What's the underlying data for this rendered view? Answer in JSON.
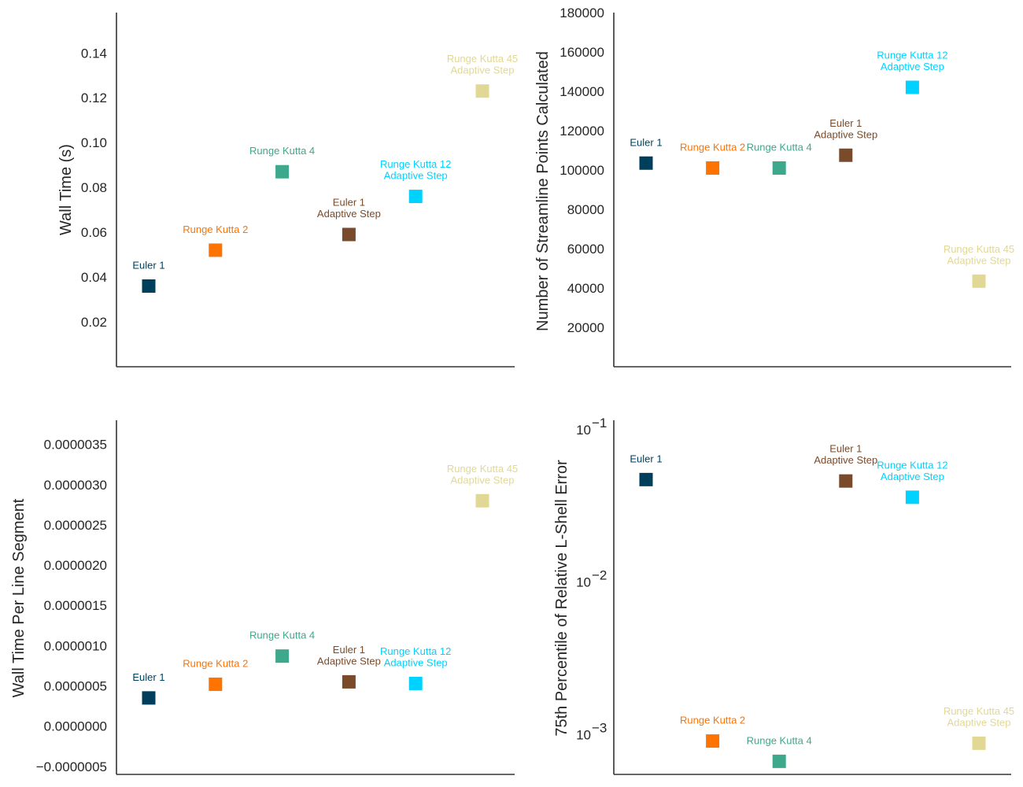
{
  "chart_data": [
    {
      "type": "scatter",
      "ylabel": "Wall Time (s)",
      "ylim": [
        0,
        0.158
      ],
      "yscale": "linear",
      "yticks": [
        0.02,
        0.04,
        0.06,
        0.08,
        0.1,
        0.12,
        0.14
      ],
      "ytick_labels": [
        "0.02",
        "0.04",
        "0.06",
        "0.08",
        "0.10",
        "0.12",
        "0.14"
      ],
      "points": [
        {
          "label": "Euler 1",
          "value": 0.036,
          "color": "#003f5c"
        },
        {
          "label": "Runge Kutta 2",
          "value": 0.052,
          "color": "#ff7300"
        },
        {
          "label": "Runge Kutta 4",
          "value": 0.087,
          "color": "#3ea88c"
        },
        {
          "label": "Euler 1\nAdaptive Step",
          "value": 0.059,
          "color": "#7a4b2a"
        },
        {
          "label": "Runge Kutta 12\nAdaptive Step",
          "value": 0.076,
          "color": "#00d2ff"
        },
        {
          "label": "Runge Kutta 45\nAdaptive Step",
          "value": 0.123,
          "color": "#e1d896"
        }
      ],
      "grid": false
    },
    {
      "type": "scatter",
      "ylabel": "Number of Streamline Points Calculated",
      "ylim": [
        0,
        180000
      ],
      "yscale": "linear",
      "yticks": [
        20000,
        40000,
        60000,
        80000,
        100000,
        120000,
        140000,
        160000,
        180000
      ],
      "ytick_labels": [
        "20000",
        "40000",
        "60000",
        "80000",
        "100000",
        "120000",
        "140000",
        "160000",
        "180000"
      ],
      "points": [
        {
          "label": "Euler 1",
          "value": 103500,
          "color": "#003f5c"
        },
        {
          "label": "Runge Kutta 2",
          "value": 101000,
          "color": "#ff7300"
        },
        {
          "label": "Runge Kutta 4",
          "value": 101000,
          "color": "#3ea88c"
        },
        {
          "label": "Euler 1\nAdaptive Step",
          "value": 107500,
          "color": "#7a4b2a"
        },
        {
          "label": "Runge Kutta 12\nAdaptive Step",
          "value": 142000,
          "color": "#00d2ff"
        },
        {
          "label": "Runge Kutta 45\nAdaptive Step",
          "value": 43500,
          "color": "#e1d896"
        }
      ],
      "grid": false
    },
    {
      "type": "scatter",
      "ylabel": "Wall Time Per Line Segment",
      "ylim": [
        -6e-07,
        3.8e-06
      ],
      "yscale": "linear",
      "yticks": [
        -5e-07,
        0.0,
        5e-07,
        1e-06,
        1.5e-06,
        2e-06,
        2.5e-06,
        3e-06,
        3.5e-06
      ],
      "ytick_labels": [
        "−0.0000005",
        "0.0000000",
        "0.0000005",
        "0.0000010",
        "0.0000015",
        "0.0000020",
        "0.0000025",
        "0.0000030",
        "0.0000035"
      ],
      "points": [
        {
          "label": "Euler 1",
          "value": 3.5e-07,
          "color": "#003f5c"
        },
        {
          "label": "Runge Kutta 2",
          "value": 5.2e-07,
          "color": "#ff7300"
        },
        {
          "label": "Runge Kutta 4",
          "value": 8.7e-07,
          "color": "#3ea88c"
        },
        {
          "label": "Euler 1\nAdaptive Step",
          "value": 5.5e-07,
          "color": "#7a4b2a"
        },
        {
          "label": "Runge Kutta 12\nAdaptive Step",
          "value": 5.3e-07,
          "color": "#00d2ff"
        },
        {
          "label": "Runge Kutta 45\nAdaptive Step",
          "value": 2.8e-06,
          "color": "#e1d896"
        }
      ],
      "grid": false
    },
    {
      "type": "scatter",
      "ylabel": "75th Percentile of Relative L-Shell Error",
      "ylim": [
        0.00055,
        0.115
      ],
      "yscale": "log",
      "yticks": [
        0.001,
        0.01,
        0.1
      ],
      "ytick_labels": [
        {
          "base": "10",
          "exp": "−3"
        },
        {
          "base": "10",
          "exp": "−2"
        },
        {
          "base": "10",
          "exp": "−1"
        }
      ],
      "points": [
        {
          "label": "Euler 1",
          "value": 0.047,
          "color": "#003f5c"
        },
        {
          "label": "Runge Kutta 2",
          "value": 0.00091,
          "color": "#ff7300"
        },
        {
          "label": "Runge Kutta 4",
          "value": 0.00067,
          "color": "#3ea88c"
        },
        {
          "label": "Euler 1\nAdaptive Step",
          "value": 0.046,
          "color": "#7a4b2a"
        },
        {
          "label": "Runge Kutta 12\nAdaptive Step",
          "value": 0.036,
          "color": "#00d2ff"
        },
        {
          "label": "Runge Kutta 45\nAdaptive Step",
          "value": 0.00088,
          "color": "#e1d896"
        }
      ],
      "grid": false
    }
  ]
}
